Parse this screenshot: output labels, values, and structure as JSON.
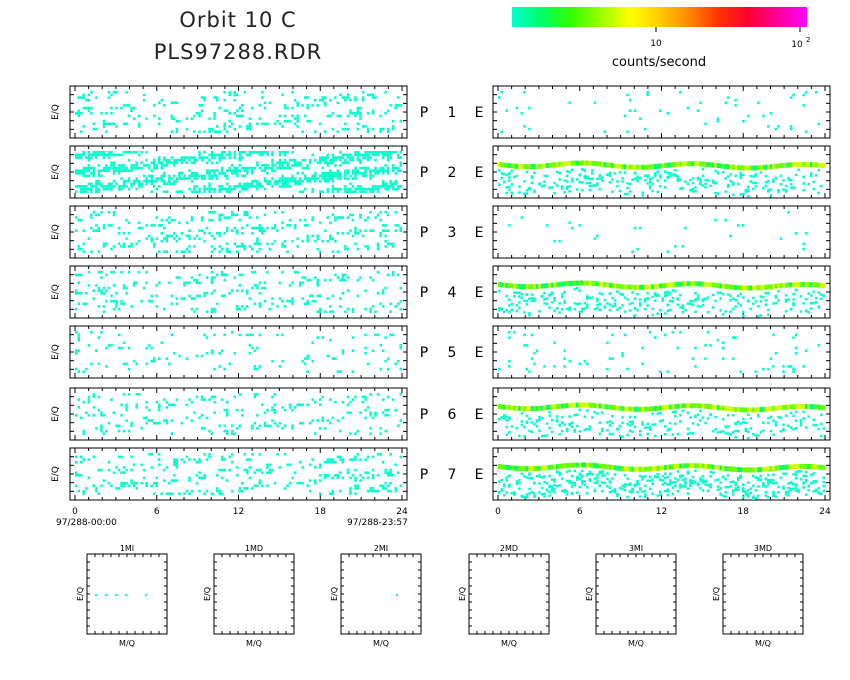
{
  "header": {
    "title_line1": "Orbit 10 C",
    "title_line2": "PLS97288.RDR"
  },
  "colorbar": {
    "tick_low": "10",
    "tick_high": "10",
    "tick_high_exp": "2",
    "label": "counts/second",
    "colors": [
      "#00ffcc",
      "#00ff66",
      "#33ff00",
      "#99ff00",
      "#ffff00",
      "#ffcc00",
      "#ff8800",
      "#ff3300",
      "#ff0033",
      "#ff0099",
      "#ff00ff"
    ]
  },
  "chart_data": {
    "type": "heatmap",
    "ylabel": "E/Q",
    "x_ticks": [
      "0",
      "6",
      "12",
      "18",
      "24"
    ],
    "x_range": [
      0,
      24
    ],
    "time_start": "97/288-00:00",
    "time_end": "97/288-23:57",
    "left_panels": [
      {
        "label": "P",
        "number": "1",
        "density": 0.25
      },
      {
        "label": "P",
        "number": "2",
        "density": 0.78
      },
      {
        "label": "P",
        "number": "3",
        "density": 0.3
      },
      {
        "label": "P",
        "number": "4",
        "density": 0.22
      },
      {
        "label": "P",
        "number": "5",
        "density": 0.12
      },
      {
        "label": "P",
        "number": "6",
        "density": 0.22
      },
      {
        "label": "P",
        "number": "7",
        "density": 0.28
      }
    ],
    "right_panels": [
      {
        "label": "E",
        "band": false,
        "density": 0.15
      },
      {
        "label": "E",
        "band": true,
        "density": 0.35
      },
      {
        "label": "E",
        "band": false,
        "density": 0.05
      },
      {
        "label": "E",
        "band": true,
        "density": 0.35
      },
      {
        "label": "E",
        "band": false,
        "density": 0.2
      },
      {
        "label": "E",
        "band": true,
        "density": 0.3
      },
      {
        "label": "E",
        "band": true,
        "density": 0.55
      }
    ],
    "mini_panels": [
      {
        "title": "1MI",
        "xlabel": "M/Q",
        "ylabel": "E/Q",
        "has_dots": true
      },
      {
        "title": "1MD",
        "xlabel": "M/Q",
        "ylabel": "E/Q",
        "has_dots": false
      },
      {
        "title": "2MI",
        "xlabel": "M/Q",
        "ylabel": "E/Q",
        "has_dots": true
      },
      {
        "title": "2MD",
        "xlabel": "M/Q",
        "ylabel": "E/Q",
        "has_dots": false
      },
      {
        "title": "3MI",
        "xlabel": "M/Q",
        "ylabel": "E/Q",
        "has_dots": false
      },
      {
        "title": "3MD",
        "xlabel": "M/Q",
        "ylabel": "E/Q",
        "has_dots": false
      }
    ]
  }
}
